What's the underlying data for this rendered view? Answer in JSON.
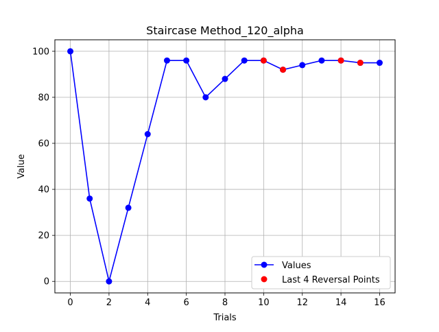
{
  "chart_data": {
    "type": "line",
    "title": "Staircase Method_120_alpha",
    "xlabel": "Trials",
    "ylabel": "Value",
    "xlim": [
      -0.8,
      16.8
    ],
    "ylim": [
      -5,
      105
    ],
    "xticks": [
      0,
      2,
      4,
      6,
      8,
      10,
      12,
      14,
      16
    ],
    "yticks": [
      0,
      20,
      40,
      60,
      80,
      100
    ],
    "grid": true,
    "legend_position": "bottom-right",
    "series": [
      {
        "name": "Values",
        "color": "#0000ff",
        "marker": "circle",
        "line": true,
        "x": [
          0,
          1,
          2,
          3,
          4,
          5,
          6,
          7,
          8,
          9,
          10,
          11,
          12,
          13,
          14,
          15,
          16
        ],
        "y": [
          100,
          36,
          0,
          32,
          64,
          96,
          96,
          80,
          88,
          96,
          96,
          92,
          94,
          96,
          96,
          95,
          95
        ]
      },
      {
        "name": "Last 4 Reversal Points",
        "color": "#ff0000",
        "marker": "circle",
        "line": false,
        "x": [
          10,
          11,
          14,
          15
        ],
        "y": [
          96,
          92,
          96,
          95
        ]
      }
    ]
  }
}
